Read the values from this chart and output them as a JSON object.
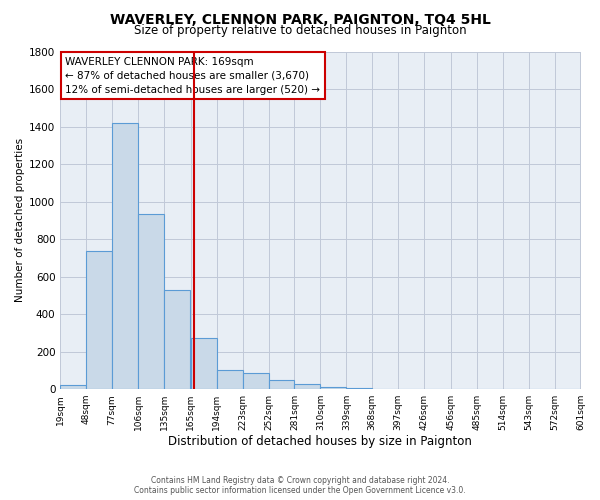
{
  "title": "WAVERLEY, CLENNON PARK, PAIGNTON, TQ4 5HL",
  "subtitle": "Size of property relative to detached houses in Paignton",
  "xlabel": "Distribution of detached houses by size in Paignton",
  "ylabel": "Number of detached properties",
  "bar_left_edges": [
    19,
    48,
    77,
    106,
    135,
    165,
    194,
    223,
    252,
    281,
    310,
    339,
    368,
    397,
    426,
    456,
    485,
    514,
    543,
    572
  ],
  "bar_heights": [
    20,
    735,
    1420,
    935,
    530,
    270,
    100,
    88,
    50,
    25,
    10,
    5,
    3,
    2,
    1,
    1,
    0,
    0,
    0,
    0
  ],
  "bin_width": 29,
  "bar_color": "#c9d9e8",
  "bar_edge_color": "#5b9bd5",
  "vline_x": 169,
  "vline_color": "#cc0000",
  "ylim": [
    0,
    1800
  ],
  "yticks": [
    0,
    200,
    400,
    600,
    800,
    1000,
    1200,
    1400,
    1600,
    1800
  ],
  "xtick_labels": [
    "19sqm",
    "48sqm",
    "77sqm",
    "106sqm",
    "135sqm",
    "165sqm",
    "194sqm",
    "223sqm",
    "252sqm",
    "281sqm",
    "310sqm",
    "339sqm",
    "368sqm",
    "397sqm",
    "426sqm",
    "456sqm",
    "485sqm",
    "514sqm",
    "543sqm",
    "572sqm",
    "601sqm"
  ],
  "xtick_positions": [
    19,
    48,
    77,
    106,
    135,
    165,
    194,
    223,
    252,
    281,
    310,
    339,
    368,
    397,
    426,
    456,
    485,
    514,
    543,
    572,
    601
  ],
  "annotation_title": "WAVERLEY CLENNON PARK: 169sqm",
  "annotation_line2": "← 87% of detached houses are smaller (3,670)",
  "annotation_line3": "12% of semi-detached houses are larger (520) →",
  "footer_line1": "Contains HM Land Registry data © Crown copyright and database right 2024.",
  "footer_line2": "Contains public sector information licensed under the Open Government Licence v3.0.",
  "background_color": "#ffffff",
  "plot_bg_color": "#e8eef5",
  "grid_color": "#c0c8d8",
  "title_fontsize": 10,
  "subtitle_fontsize": 8.5,
  "xlabel_fontsize": 8.5,
  "ylabel_fontsize": 7.5,
  "annotation_fontsize": 7.5,
  "footer_fontsize": 5.5
}
